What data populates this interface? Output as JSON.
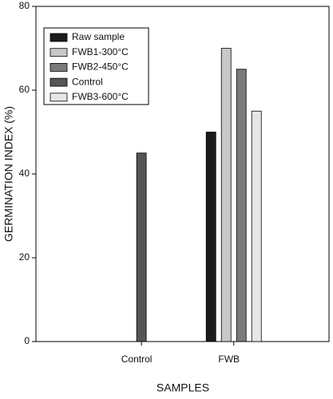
{
  "chart_data": {
    "type": "bar",
    "xlabel": "SAMPLES",
    "ylabel": "GERMINATION INDEX (%)",
    "categories": [
      "Control",
      "FWB"
    ],
    "series": [
      {
        "name": "Raw sample",
        "color": "#1a1a1a",
        "values": [
          null,
          50
        ]
      },
      {
        "name": "FWB1-300°C",
        "color": "#c8c8c8",
        "values": [
          null,
          70
        ]
      },
      {
        "name": "FWB2-450°C",
        "color": "#7a7a7a",
        "values": [
          null,
          65
        ]
      },
      {
        "name": "Control",
        "color": "#555555",
        "values": [
          45,
          null
        ]
      },
      {
        "name": "FWB3-600°C",
        "color": "#e6e6e6",
        "values": [
          null,
          55
        ]
      }
    ],
    "ylim": [
      0,
      80
    ],
    "yticks": [
      0,
      20,
      40,
      60,
      80
    ],
    "legend": "upper left"
  }
}
